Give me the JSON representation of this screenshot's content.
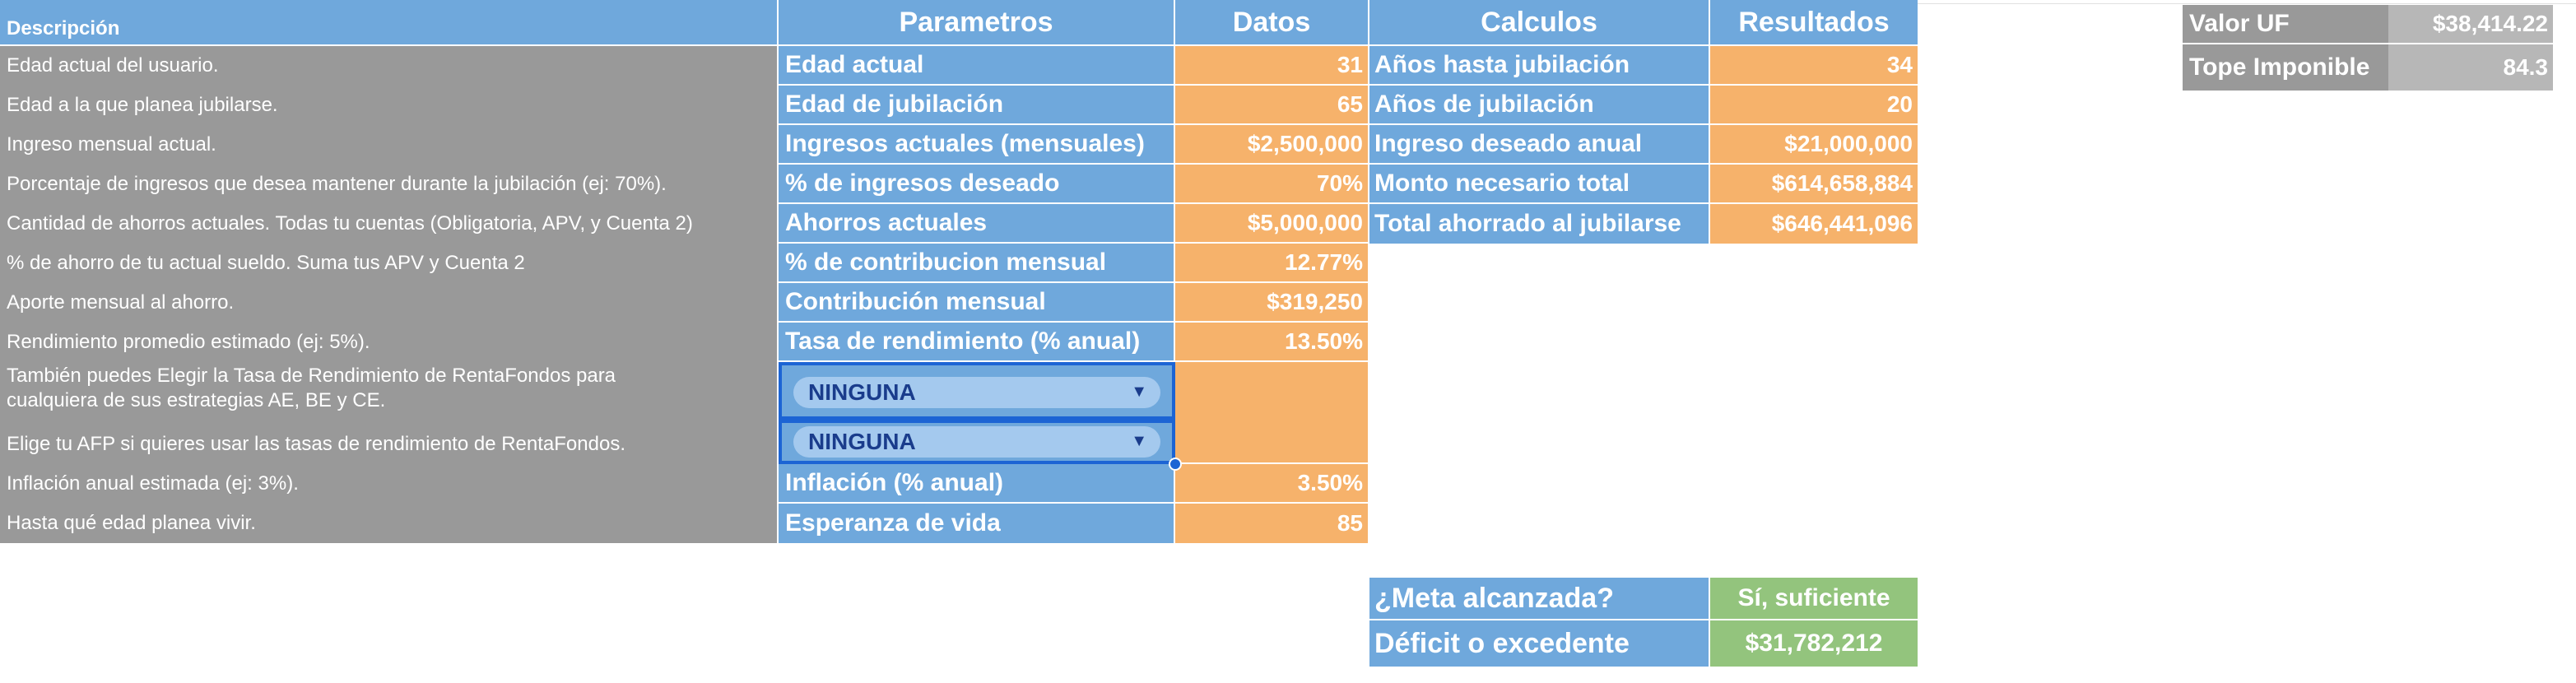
{
  "headers": {
    "descripcion": "Descripción",
    "parametros": "Parametros",
    "datos": "Datos",
    "calculos": "Calculos",
    "resultados": "Resultados"
  },
  "rows": [
    {
      "desc": "Edad actual del usuario.",
      "param": "Edad actual",
      "value": "31"
    },
    {
      "desc": "Edad a la que planea jubilarse.",
      "param": "Edad de jubilación",
      "value": "65"
    },
    {
      "desc": "Ingreso mensual actual.",
      "param": "Ingresos actuales (mensuales)",
      "value": "$2,500,000"
    },
    {
      "desc": "Porcentaje de ingresos que desea mantener durante la jubilación (ej: 70%).",
      "param": "% de ingresos deseado",
      "value": "70%"
    },
    {
      "desc": "Cantidad de ahorros actuales. Todas tu cuentas (Obligatoria, APV, y Cuenta 2)",
      "param": "Ahorros actuales",
      "value": "$5,000,000"
    },
    {
      "desc": "% de ahorro de tu actual sueldo. Suma tus APV y Cuenta 2",
      "param": "% de contribucion mensual",
      "value": "12.77%"
    },
    {
      "desc": "Aporte mensual al ahorro.",
      "param": "Contribución mensual",
      "value": "$319,250"
    },
    {
      "desc": "Rendimiento promedio estimado (ej: 5%).",
      "param": "Tasa de rendimiento (% anual)",
      "value": "13.50%"
    },
    {
      "desc": "También puedes Elegir la Tasa de Rendimiento de RentaFondos para cualquiera de sus estrategias AE, BE y CE.",
      "param": "NINGUNA",
      "value": ""
    },
    {
      "desc": "Elige tu AFP si quieres usar las tasas de rendimiento de RentaFondos.",
      "param": "NINGUNA",
      "value": ""
    },
    {
      "desc": "Inflación anual estimada (ej: 3%).",
      "param": "Inflación (% anual)",
      "value": "3.50%"
    },
    {
      "desc": "Hasta qué edad planea vivir.",
      "param": "Esperanza de vida",
      "value": "85"
    }
  ],
  "calculos": [
    {
      "label": "Años hasta jubilación",
      "value": "34"
    },
    {
      "label": "Años de jubilación",
      "value": "20"
    },
    {
      "label": "Ingreso deseado anual",
      "value": "$21,000,000"
    },
    {
      "label": "Monto necesario total",
      "value": "$614,658,884"
    },
    {
      "label": "Total ahorrado al jubilarse",
      "value": "$646,441,096"
    }
  ],
  "meta": {
    "label": "¿Meta alcanzada?",
    "value": "Sí, suficiente"
  },
  "deficit": {
    "label": "Déficit o excedente",
    "value": "$31,782,212"
  },
  "uf": [
    {
      "label": "Valor UF",
      "value": "$38,414.22"
    },
    {
      "label": "Tope Imponible",
      "value": "84.3"
    }
  ],
  "colors": {
    "header_blue": "#6fa8dc",
    "description_gray": "#999999",
    "value_orange": "#f6b26b",
    "result_green": "#93c47d",
    "dropdown_border": "#1c64d4"
  },
  "icons": [
    "chevron-down-icon",
    "selection-handle-icon"
  ]
}
